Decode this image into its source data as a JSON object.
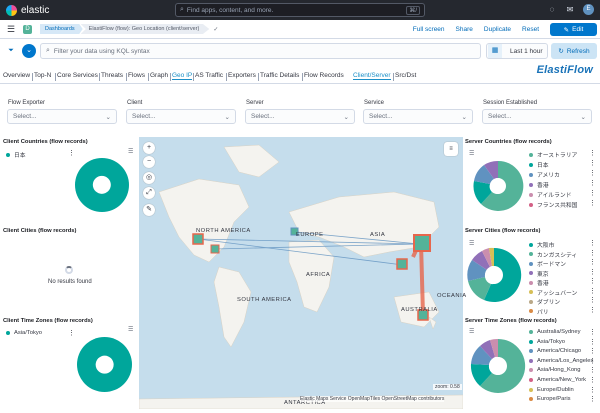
{
  "topbar": {
    "logo": "elastic",
    "search_placeholder": "Find apps, content, and more.",
    "search_shortcut": "⌘/",
    "avatar_initial": "E"
  },
  "header": {
    "breadcrumbs": [
      "Dashboards",
      "ElastiFlow (flow): Geo Location (client/server)"
    ],
    "actions": [
      "Full screen",
      "Share",
      "Duplicate",
      "Reset"
    ],
    "edit_label": "Edit"
  },
  "query": {
    "placeholder": "Filter your data using KQL syntax",
    "time_range": "Last 1 hour",
    "refresh_label": "Refresh"
  },
  "tabs": [
    {
      "label": "Overview"
    },
    {
      "label": "Top-N"
    },
    {
      "label": "Core Services"
    },
    {
      "label": "Threats"
    },
    {
      "label": "Flows"
    },
    {
      "label": "Graph"
    },
    {
      "label": "Geo IP",
      "active": true
    },
    {
      "label": "AS Traffic"
    },
    {
      "label": "Exporters"
    },
    {
      "label": "Traffic Details"
    },
    {
      "label": "Flow Records"
    },
    {
      "label": "Client/Server",
      "active": true
    },
    {
      "label": "Src/Dst"
    }
  ],
  "brand": "ElastiFlow",
  "controls": [
    {
      "label": "Flow Exporter",
      "value": "Select..."
    },
    {
      "label": "Client",
      "value": "Select..."
    },
    {
      "label": "Server",
      "value": "Select..."
    },
    {
      "label": "Service",
      "value": "Select..."
    },
    {
      "label": "Session Established",
      "value": "Select..."
    }
  ],
  "panels": {
    "client_countries": {
      "title": "Client Countries (flow records)",
      "legend": [
        {
          "label": "日本",
          "color": "#00a69b"
        }
      ]
    },
    "client_cities": {
      "title": "Client Cities (flow records)",
      "no_results": "No results found"
    },
    "client_time_zones": {
      "title": "Client Time Zones (flow records)",
      "legend": [
        {
          "label": "Asia/Tokyo",
          "color": "#00a69b"
        }
      ]
    },
    "server_countries": {
      "title": "Server Countries (flow records)",
      "legend": [
        {
          "label": "オーストラリア",
          "color": "#54b399"
        },
        {
          "label": "日本",
          "color": "#00a69b"
        },
        {
          "label": "アメリカ",
          "color": "#6092c0"
        },
        {
          "label": "香港",
          "color": "#9170b8"
        },
        {
          "label": "アイルランド",
          "color": "#ca8eae"
        },
        {
          "label": "フランス共和国",
          "color": "#d36086"
        }
      ]
    },
    "server_cities": {
      "title": "Server Cities (flow records)",
      "legend": [
        {
          "label": "大阪市",
          "color": "#00a69b"
        },
        {
          "label": "カンガスシティ",
          "color": "#54b399"
        },
        {
          "label": "ボードマン",
          "color": "#6092c0"
        },
        {
          "label": "東京",
          "color": "#9170b8"
        },
        {
          "label": "香港",
          "color": "#ca8eae"
        },
        {
          "label": "アッシュバーン",
          "color": "#d6bf57"
        },
        {
          "label": "ダブリン",
          "color": "#b9a888"
        },
        {
          "label": "パリ",
          "color": "#da8b45"
        }
      ]
    },
    "server_time_zones": {
      "title": "Server Time Zones (flow records)",
      "legend": [
        {
          "label": "Australia/Sydney",
          "color": "#54b399"
        },
        {
          "label": "Asia/Tokyo",
          "color": "#00a69b"
        },
        {
          "label": "America/Chicago",
          "color": "#6092c0"
        },
        {
          "label": "America/Los_Angeles",
          "color": "#9170b8"
        },
        {
          "label": "Asia/Hong_Kong",
          "color": "#ca8eae"
        },
        {
          "label": "America/New_York",
          "color": "#d36086"
        },
        {
          "label": "Europe/Dublin",
          "color": "#d6bf57"
        },
        {
          "label": "Europe/Paris",
          "color": "#da8b45"
        }
      ]
    }
  },
  "map": {
    "labels": [
      "NORTH AMERICA",
      "EUROPE",
      "ASIA",
      "AFRICA",
      "SOUTH AMERICA",
      "OCEANIA",
      "AUSTRALIA",
      "ANTARCTICA"
    ],
    "zoom": "zoom: 0.58",
    "attribution": "Elastic Maps Service   OpenMapTiles   OpenStreetMap contributors"
  }
}
